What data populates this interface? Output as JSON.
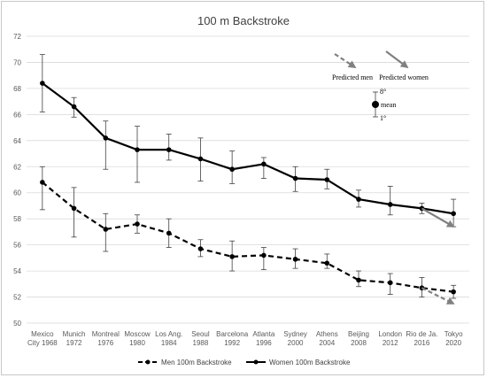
{
  "chart_data": {
    "type": "line",
    "title": "100 m Backstroke",
    "xlabel": "",
    "ylabel": "",
    "ylim": [
      50,
      72
    ],
    "yticks": [
      50,
      52,
      54,
      56,
      58,
      60,
      62,
      64,
      66,
      68,
      70,
      72
    ],
    "grid": true,
    "legend_position": "bottom",
    "categories": [
      [
        "Mexico",
        "City 1968"
      ],
      [
        "Munich",
        "1972"
      ],
      [
        "Montreal",
        "1976"
      ],
      [
        "Moscow",
        "1980"
      ],
      [
        "Los Ang.",
        "1984"
      ],
      [
        "Seoul",
        "1988"
      ],
      [
        "Barcelona",
        "1992"
      ],
      [
        "Atlanta",
        "1996"
      ],
      [
        "Sydney",
        "2000"
      ],
      [
        "Athens",
        "2004"
      ],
      [
        "Beijing",
        "2008"
      ],
      [
        "London",
        "2012"
      ],
      [
        "Rio de Ja.",
        "2016"
      ],
      [
        "Tokyo",
        "2020"
      ]
    ],
    "series": [
      {
        "name": "Men 100m Backstroke",
        "style": "dashed",
        "color": "#000000",
        "values": [
          60.8,
          58.8,
          57.2,
          57.6,
          56.9,
          55.7,
          55.1,
          55.2,
          54.9,
          54.6,
          53.3,
          53.1,
          52.7,
          52.4
        ],
        "upper": [
          62.0,
          60.4,
          58.4,
          58.3,
          58.0,
          56.4,
          56.3,
          55.8,
          55.7,
          55.3,
          54.0,
          53.8,
          53.5,
          52.9
        ],
        "lower": [
          58.7,
          56.6,
          55.5,
          56.9,
          55.8,
          55.1,
          54.0,
          54.1,
          54.2,
          54.2,
          52.8,
          52.2,
          52.0,
          51.9
        ]
      },
      {
        "name": "Women 100m Backstroke",
        "style": "solid",
        "color": "#000000",
        "values": [
          68.4,
          66.6,
          64.2,
          63.3,
          63.3,
          62.6,
          61.8,
          62.2,
          61.1,
          61.0,
          59.5,
          59.1,
          58.8,
          58.4
        ],
        "upper": [
          70.6,
          67.3,
          65.5,
          65.1,
          64.5,
          64.2,
          63.2,
          62.7,
          62.0,
          61.8,
          60.2,
          60.5,
          59.2,
          59.5
        ],
        "lower": [
          66.2,
          65.8,
          61.8,
          60.8,
          62.5,
          60.9,
          60.7,
          61.1,
          60.1,
          60.3,
          58.9,
          58.3,
          58.4,
          57.4
        ]
      }
    ],
    "predictions": [
      {
        "label": "Predicted men",
        "from_category": 12,
        "from_value": 52.7,
        "to_category": 13,
        "to_value": 51.5,
        "color": "#808080"
      },
      {
        "label": "Predicted women",
        "from_category": 12,
        "from_value": 58.8,
        "to_category": 13,
        "to_value": 57.4,
        "color": "#808080"
      }
    ],
    "annotation_key": {
      "predicted_men_label": "Predicted men",
      "predicted_women_label": "Predicted women",
      "top_label": "8°",
      "mean_label": "mean",
      "bottom_label": "1°"
    }
  }
}
